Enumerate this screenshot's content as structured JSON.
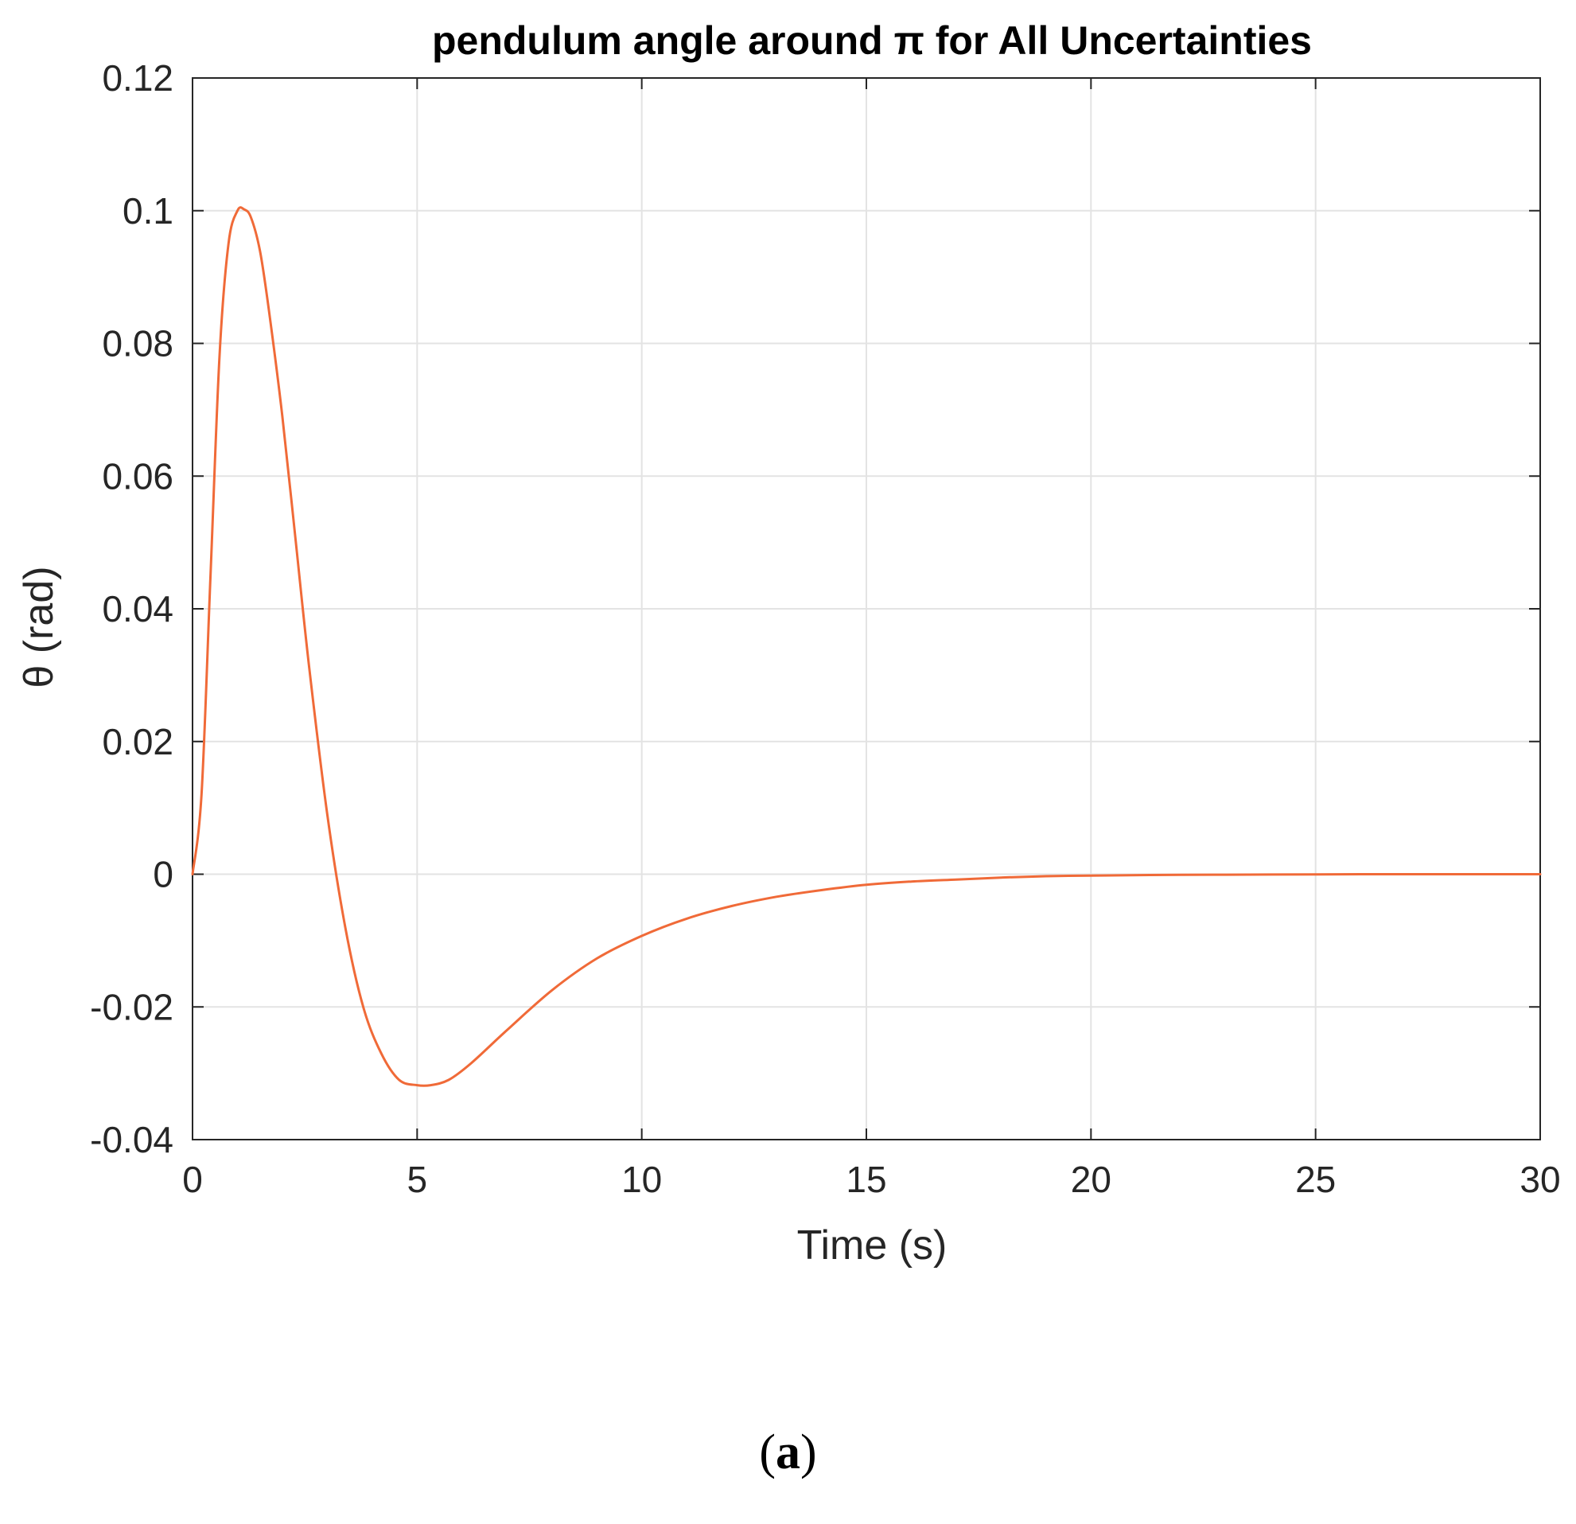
{
  "chart_data": {
    "type": "line",
    "title": "pendulum angle around π for All Uncertainties",
    "xlabel": "Time (s)",
    "ylabel": "θ (rad)",
    "xlim": [
      0,
      30
    ],
    "ylim": [
      -0.04,
      0.12
    ],
    "x_ticks": [
      0,
      5,
      10,
      15,
      20,
      25,
      30
    ],
    "y_ticks": [
      -0.04,
      -0.02,
      0,
      0.02,
      0.04,
      0.06,
      0.08,
      0.1,
      0.12
    ],
    "x_tick_labels": [
      "0",
      "5",
      "10",
      "15",
      "20",
      "25",
      "30"
    ],
    "y_tick_labels": [
      "-0.04",
      "-0.02",
      "0",
      "0.02",
      "0.04",
      "0.06",
      "0.08",
      "0.1",
      "0.12"
    ],
    "grid": true,
    "series": [
      {
        "color": "#f06a38",
        "x": [
          0,
          0.2,
          0.4,
          0.6,
          0.8,
          1.0,
          1.15,
          1.3,
          1.5,
          1.7,
          2.0,
          2.3,
          2.6,
          3.0,
          3.4,
          3.8,
          4.2,
          4.6,
          5.0,
          5.3,
          5.7,
          6.2,
          7.0,
          8.0,
          9.0,
          10.0,
          11.0,
          12.0,
          13.0,
          14.0,
          15.0,
          16.0,
          17.0,
          18.0,
          19.0,
          20.0,
          22.0,
          24.0,
          26.0,
          28.0,
          30.0
        ],
        "y": [
          0,
          0.012,
          0.045,
          0.078,
          0.095,
          0.1,
          0.1002,
          0.099,
          0.094,
          0.085,
          0.069,
          0.05,
          0.031,
          0.009,
          -0.008,
          -0.02,
          -0.027,
          -0.031,
          -0.0318,
          -0.0318,
          -0.031,
          -0.0285,
          -0.0235,
          -0.0175,
          -0.0127,
          -0.0093,
          -0.0067,
          -0.0048,
          -0.0034,
          -0.0024,
          -0.0016,
          -0.0011,
          -0.0008,
          -0.0005,
          -0.0003,
          -0.0002,
          -0.0001,
          -5e-05,
          0,
          0,
          0
        ]
      }
    ]
  },
  "caption": {
    "open": "(",
    "letter": "a",
    "close": ")"
  }
}
